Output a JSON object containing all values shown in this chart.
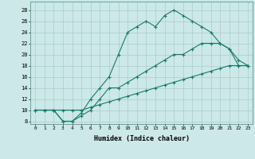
{
  "xlabel": "Humidex (Indice chaleur)",
  "bg_color": "#cce8e8",
  "grid_color": "#aacccc",
  "line_color": "#1a7a6a",
  "xlim": [
    -0.5,
    23.5
  ],
  "ylim": [
    7.5,
    29.5
  ],
  "yticks": [
    8,
    10,
    12,
    14,
    16,
    18,
    20,
    22,
    24,
    26,
    28
  ],
  "xticks": [
    0,
    1,
    2,
    3,
    4,
    5,
    6,
    7,
    8,
    9,
    10,
    11,
    12,
    13,
    14,
    15,
    16,
    17,
    18,
    19,
    20,
    21,
    22,
    23
  ],
  "line1_x": [
    0,
    1,
    2,
    3,
    4,
    5,
    6,
    7,
    8,
    9,
    10,
    11,
    12,
    13,
    14,
    15,
    16,
    17,
    18,
    19,
    20,
    21,
    22,
    23
  ],
  "line1_y": [
    10,
    10,
    10,
    8,
    8,
    9.5,
    12,
    14,
    16,
    20,
    24,
    25,
    26,
    25,
    27,
    28,
    27,
    26,
    25,
    24,
    22,
    21,
    19,
    18
  ],
  "line2_x": [
    0,
    1,
    2,
    3,
    4,
    5,
    6,
    7,
    8,
    9,
    10,
    11,
    12,
    13,
    14,
    15,
    16,
    17,
    18,
    19,
    20,
    21,
    22,
    23
  ],
  "line2_y": [
    10,
    10,
    10,
    8,
    8,
    9,
    10,
    12,
    14,
    14,
    15,
    16,
    17,
    18,
    19,
    20,
    20,
    21,
    22,
    22,
    22,
    21,
    18,
    18
  ],
  "line3_x": [
    0,
    1,
    2,
    3,
    4,
    5,
    6,
    7,
    8,
    9,
    10,
    11,
    12,
    13,
    14,
    15,
    16,
    17,
    18,
    19,
    20,
    21,
    22,
    23
  ],
  "line3_y": [
    10,
    10,
    10,
    10,
    10,
    10,
    10.5,
    11,
    11.5,
    12,
    12.5,
    13,
    13.5,
    14,
    14.5,
    15,
    15.5,
    16,
    16.5,
    17,
    17.5,
    18,
    18,
    18
  ]
}
